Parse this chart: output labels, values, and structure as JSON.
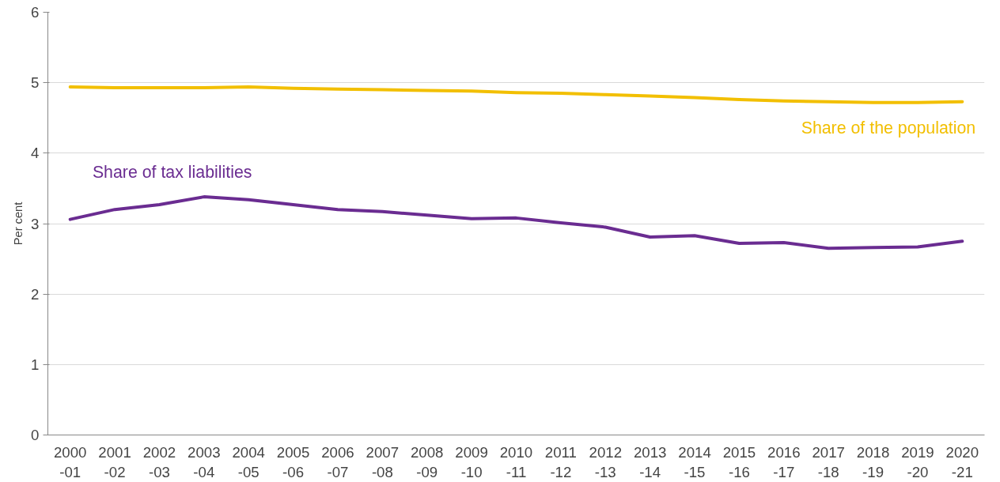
{
  "chart_data": {
    "type": "line",
    "ylabel": "Per cent",
    "categories": [
      "2000\n-01",
      "2001\n-02",
      "2002\n-03",
      "2003\n-04",
      "2004\n-05",
      "2005\n-06",
      "2006\n-07",
      "2007\n-08",
      "2008\n-09",
      "2009\n-10",
      "2010\n-11",
      "2011\n-12",
      "2012\n-13",
      "2013\n-14",
      "2014\n-15",
      "2015\n-16",
      "2016\n-17",
      "2017\n-18",
      "2018\n-19",
      "2019\n-20",
      "2020\n-21"
    ],
    "series": [
      {
        "name": "Share of the population",
        "color": "#f2bf00",
        "values": [
          4.94,
          4.93,
          4.93,
          4.93,
          4.94,
          4.92,
          4.91,
          4.9,
          4.89,
          4.88,
          4.86,
          4.85,
          4.83,
          4.81,
          4.79,
          4.76,
          4.74,
          4.73,
          4.72,
          4.72,
          4.73
        ]
      },
      {
        "name": "Share of tax liabilities",
        "color": "#6a2c91",
        "values": [
          3.06,
          3.2,
          3.27,
          3.38,
          3.34,
          3.27,
          3.2,
          3.17,
          3.12,
          3.07,
          3.08,
          3.01,
          2.95,
          2.81,
          2.83,
          2.72,
          2.73,
          2.65,
          2.66,
          2.67,
          2.75
        ]
      }
    ],
    "ylim": [
      0,
      6
    ],
    "yticks": [
      0,
      1,
      2,
      3,
      4,
      5,
      6
    ],
    "grid": "y",
    "legend": false,
    "marker": "none",
    "line_style": "solid"
  }
}
